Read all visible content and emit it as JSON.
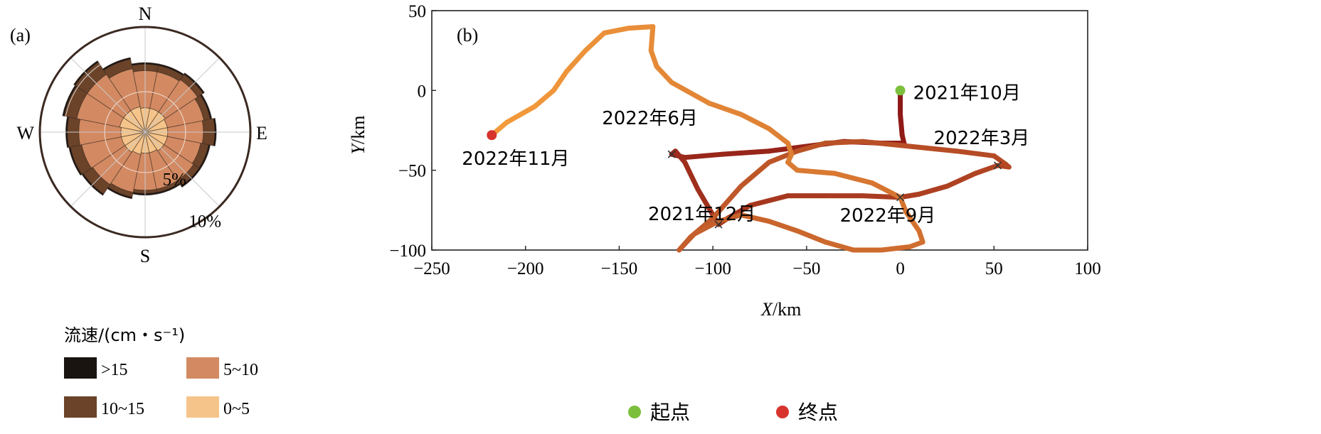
{
  "chart_data": [
    {
      "panel_label": "(a)",
      "type": "windrose",
      "directions": {
        "n": "N",
        "e": "E",
        "s": "S",
        "w": "W"
      },
      "ring_labels": [
        "5%",
        "10%"
      ],
      "ring_values": [
        5,
        10
      ],
      "max_ring": 13,
      "sector_count": 16,
      "legend_title": "流速/(cm・s⁻¹)",
      "bins": [
        {
          "label": ">15",
          "color": "#1a1410"
        },
        {
          "label": "10~15",
          "color": "#6b4329"
        },
        {
          "label": "5~10",
          "color": "#d38a62"
        },
        {
          "label": "0~5",
          "color": "#f5c48a"
        }
      ],
      "sectors": [
        {
          "dir": 0,
          "cum": [
            3.0,
            7.6,
            8.4,
            8.6
          ]
        },
        {
          "dir": 22.5,
          "cum": [
            3.0,
            7.6,
            8.4,
            8.6
          ]
        },
        {
          "dir": 45,
          "cum": [
            3.0,
            7.8,
            8.6,
            8.8
          ]
        },
        {
          "dir": 67.5,
          "cum": [
            2.8,
            7.4,
            8.2,
            8.4
          ]
        },
        {
          "dir": 90,
          "cum": [
            2.8,
            7.2,
            8.6,
            8.8
          ]
        },
        {
          "dir": 112.5,
          "cum": [
            2.8,
            7.0,
            8.0,
            8.2
          ]
        },
        {
          "dir": 135,
          "cum": [
            2.8,
            7.2,
            8.0,
            8.2
          ]
        },
        {
          "dir": 157.5,
          "cum": [
            2.6,
            7.2,
            7.6,
            7.8
          ]
        },
        {
          "dir": 180,
          "cum": [
            2.6,
            7.2,
            7.6,
            7.8
          ]
        },
        {
          "dir": 202.5,
          "cum": [
            2.8,
            7.6,
            8.2,
            8.4
          ]
        },
        {
          "dir": 225,
          "cum": [
            3.0,
            7.8,
            9.2,
            9.4
          ]
        },
        {
          "dir": 247.5,
          "cum": [
            3.0,
            8.0,
            9.4,
            9.6
          ]
        },
        {
          "dir": 270,
          "cum": [
            3.0,
            8.2,
            9.6,
            9.8
          ]
        },
        {
          "dir": 292.5,
          "cum": [
            3.2,
            8.6,
            10.2,
            10.4
          ]
        },
        {
          "dir": 315,
          "cum": [
            3.2,
            8.6,
            10.4,
            10.6
          ]
        },
        {
          "dir": 337.5,
          "cum": [
            3.2,
            8.0,
            9.2,
            9.4
          ]
        }
      ]
    },
    {
      "panel_label": "(b)",
      "type": "line",
      "xlabel_var": "X",
      "xlabel_unit": "/km",
      "ylabel_var": "Y",
      "ylabel_unit": "/km",
      "xlim": [
        -250,
        100
      ],
      "ylim": [
        -100,
        50
      ],
      "xticks": [
        -250,
        -200,
        -150,
        -100,
        -50,
        0,
        50,
        100
      ],
      "yticks": [
        -100,
        -50,
        0,
        50
      ],
      "legend": [
        {
          "label": "起点",
          "color": "#7cbf3c"
        },
        {
          "label": "终点",
          "color": "#d8342e"
        }
      ],
      "start_point": {
        "x": 0,
        "y": 0
      },
      "end_point": {
        "x": -218,
        "y": -28
      },
      "track": [
        {
          "x": 0,
          "y": 0
        },
        {
          "x": 0,
          "y": -15
        },
        {
          "x": 1,
          "y": -28
        },
        {
          "x": 2,
          "y": -33
        },
        {
          "x": -10,
          "y": -33
        },
        {
          "x": -30,
          "y": -32
        },
        {
          "x": -50,
          "y": -35
        },
        {
          "x": -70,
          "y": -38
        },
        {
          "x": -95,
          "y": -40
        },
        {
          "x": -115,
          "y": -42
        },
        {
          "x": -122,
          "y": -40
        },
        {
          "x": -120,
          "y": -38
        },
        {
          "x": -115,
          "y": -45
        },
        {
          "x": -108,
          "y": -62
        },
        {
          "x": -100,
          "y": -78
        },
        {
          "x": -97,
          "y": -84
        },
        {
          "x": -92,
          "y": -80
        },
        {
          "x": -80,
          "y": -72
        },
        {
          "x": -60,
          "y": -66
        },
        {
          "x": -40,
          "y": -66
        },
        {
          "x": -20,
          "y": -66
        },
        {
          "x": 0,
          "y": -67
        },
        {
          "x": 10,
          "y": -65
        },
        {
          "x": 25,
          "y": -60
        },
        {
          "x": 40,
          "y": -52
        },
        {
          "x": 52,
          "y": -47
        },
        {
          "x": 58,
          "y": -48
        },
        {
          "x": 56,
          "y": -46
        },
        {
          "x": 50,
          "y": -41
        },
        {
          "x": 30,
          "y": -38
        },
        {
          "x": 5,
          "y": -35
        },
        {
          "x": -20,
          "y": -32
        },
        {
          "x": -40,
          "y": -33
        },
        {
          "x": -55,
          "y": -38
        },
        {
          "x": -70,
          "y": -45
        },
        {
          "x": -85,
          "y": -60
        },
        {
          "x": -100,
          "y": -80
        },
        {
          "x": -112,
          "y": -92
        },
        {
          "x": -118,
          "y": -100
        },
        {
          "x": -110,
          "y": -90
        },
        {
          "x": -97,
          "y": -82
        },
        {
          "x": -85,
          "y": -78
        },
        {
          "x": -70,
          "y": -82
        },
        {
          "x": -55,
          "y": -88
        },
        {
          "x": -40,
          "y": -95
        },
        {
          "x": -25,
          "y": -100
        },
        {
          "x": -10,
          "y": -100
        },
        {
          "x": 5,
          "y": -98
        },
        {
          "x": 12,
          "y": -95
        },
        {
          "x": 10,
          "y": -88
        },
        {
          "x": 3,
          "y": -76
        },
        {
          "x": 0,
          "y": -67
        },
        {
          "x": -15,
          "y": -58
        },
        {
          "x": -35,
          "y": -52
        },
        {
          "x": -55,
          "y": -50
        },
        {
          "x": -60,
          "y": -45
        },
        {
          "x": -58,
          "y": -40
        },
        {
          "x": -60,
          "y": -33
        },
        {
          "x": -70,
          "y": -24
        },
        {
          "x": -85,
          "y": -15
        },
        {
          "x": -102,
          "y": -8
        },
        {
          "x": -122,
          "y": 5
        },
        {
          "x": -130,
          "y": 15
        },
        {
          "x": -133,
          "y": 25
        },
        {
          "x": -132,
          "y": 40
        },
        {
          "x": -145,
          "y": 39
        },
        {
          "x": -158,
          "y": 36
        },
        {
          "x": -168,
          "y": 25
        },
        {
          "x": -178,
          "y": 12
        },
        {
          "x": -185,
          "y": 0
        },
        {
          "x": -195,
          "y": -10
        },
        {
          "x": -210,
          "y": -20
        },
        {
          "x": -218,
          "y": -28
        }
      ],
      "markers": [
        {
          "x": -122,
          "y": -40,
          "label": "2022年6月",
          "anchor": "upper-left"
        },
        {
          "x": 52,
          "y": -47,
          "label": "2022年3月",
          "anchor": "upper-left"
        },
        {
          "x": 0,
          "y": -67,
          "label": "2022年9月",
          "anchor": "lower-left"
        },
        {
          "x": -97,
          "y": -84,
          "label": "2021年12月",
          "anchor": "upper-left"
        }
      ],
      "start_label": "2021年10月",
      "end_label": "2022年11月"
    }
  ]
}
